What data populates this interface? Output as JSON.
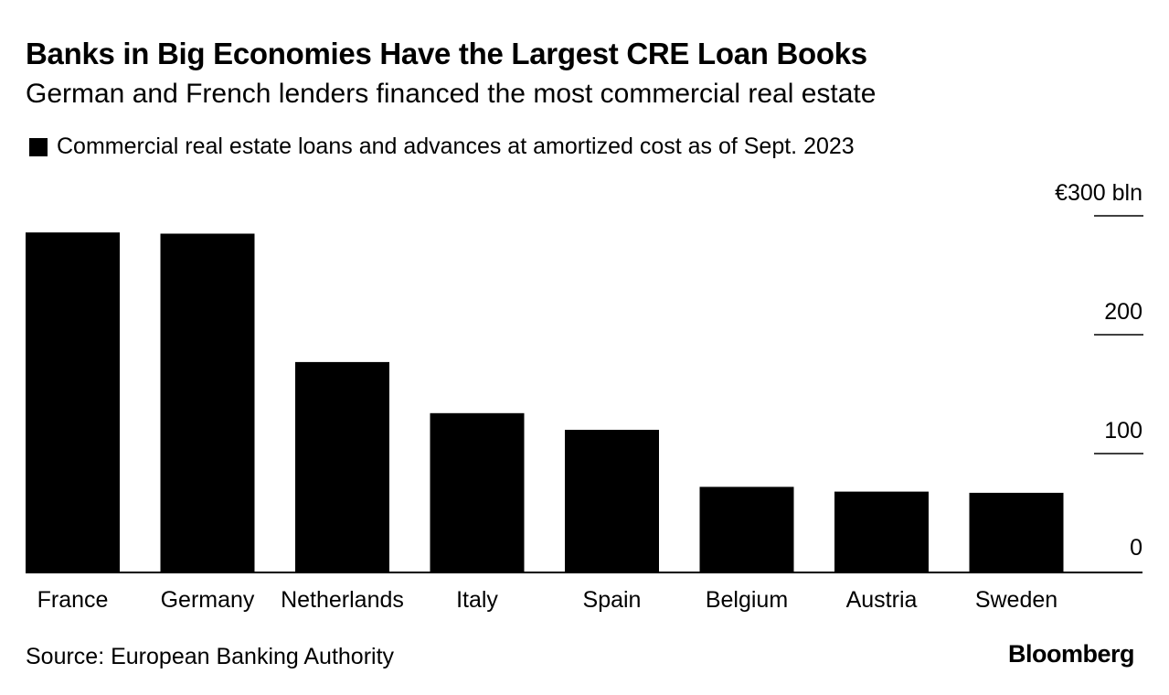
{
  "header": {
    "title": "Banks in Big Economies Have the Largest CRE Loan Books",
    "subtitle": "German and French lenders financed the most commercial real estate"
  },
  "legend": {
    "label": "Commercial real estate loans and advances at amortized cost as of Sept. 2023",
    "color": "#000000"
  },
  "chart_data": {
    "type": "bar",
    "title": "Banks in Big Economies Have the Largest CRE Loan Books",
    "subtitle": "German and French lenders financed the most commercial real estate",
    "categories": [
      "France",
      "Germany",
      "Netherlands",
      "Italy",
      "Spain",
      "Belgium",
      "Austria",
      "Sweden"
    ],
    "series": [
      {
        "name": "Commercial real estate loans and advances at amortized cost as of Sept. 2023",
        "values": [
          286,
          285,
          177,
          134,
          120,
          72,
          68,
          67
        ],
        "color": "#000000"
      }
    ],
    "ylim": [
      0,
      300
    ],
    "yticks": [
      0,
      100,
      200,
      300
    ],
    "ytick_labels": [
      "0",
      "100",
      "200",
      "€300 bln"
    ],
    "y_axis_position": "right",
    "grid": false,
    "legend_position": "top-left"
  },
  "footer": {
    "source": "Source: European Banking Authority",
    "logo": "Bloomberg"
  }
}
